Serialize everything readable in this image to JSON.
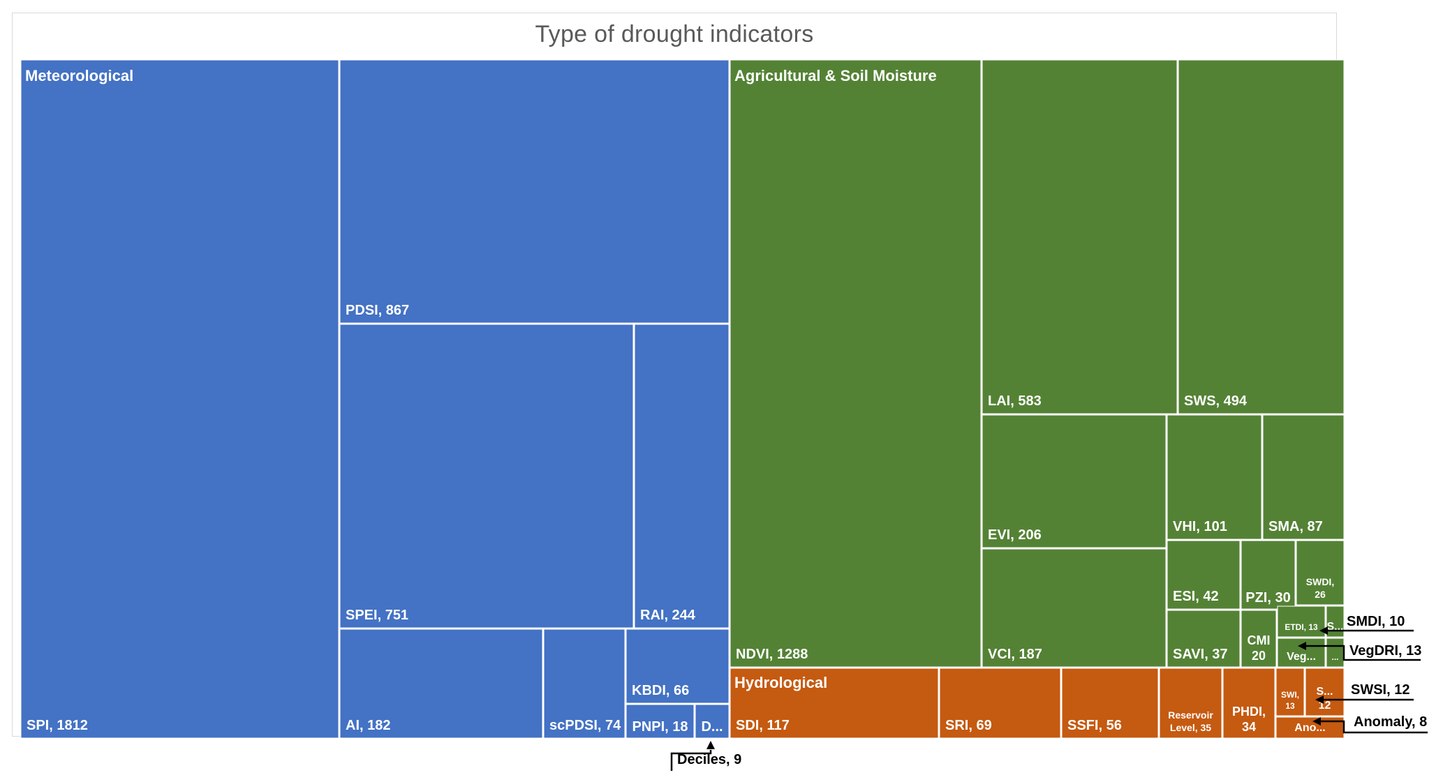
{
  "chart_data": {
    "type": "treemap",
    "title": "Type of drought indicators",
    "groups": [
      {
        "name": "Meteorological",
        "color": "#4472C4",
        "items": [
          {
            "label": "SPI",
            "value": 1812,
            "text": "SPI, 1812"
          },
          {
            "label": "PDSI",
            "value": 867,
            "text": "PDSI, 867"
          },
          {
            "label": "SPEI",
            "value": 751,
            "text": "SPEI, 751"
          },
          {
            "label": "RAI",
            "value": 244,
            "text": "RAI, 244"
          },
          {
            "label": "AI",
            "value": 182,
            "text": "AI, 182"
          },
          {
            "label": "scPDSI",
            "value": 74,
            "text": "scPDSI, 74"
          },
          {
            "label": "KBDI",
            "value": 66,
            "text": "KBDI, 66"
          },
          {
            "label": "PNPI",
            "value": 18,
            "text": "PNPI, 18"
          },
          {
            "label": "Deciles",
            "value": 9,
            "text": "D..."
          }
        ]
      },
      {
        "name": "Agricultural & Soil Moisture",
        "color": "#548235",
        "items": [
          {
            "label": "NDVI",
            "value": 1288,
            "text": "NDVI, 1288"
          },
          {
            "label": "LAI",
            "value": 583,
            "text": "LAI, 583"
          },
          {
            "label": "SWS",
            "value": 494,
            "text": "SWS, 494"
          },
          {
            "label": "EVI",
            "value": 206,
            "text": "EVI, 206"
          },
          {
            "label": "VCI",
            "value": 187,
            "text": "VCI, 187"
          },
          {
            "label": "VHI",
            "value": 101,
            "text": "VHI, 101"
          },
          {
            "label": "SMA",
            "value": 87,
            "text": "SMA, 87"
          },
          {
            "label": "ESI",
            "value": 42,
            "text": "ESI, 42"
          },
          {
            "label": "PZI",
            "value": 30,
            "text": "PZI, 30"
          },
          {
            "label": "SWDI",
            "value": 26,
            "text": "SWDI,\n26"
          },
          {
            "label": "SAVI",
            "value": 37,
            "text": "SAVI, 37"
          },
          {
            "label": "CMI",
            "value": 20,
            "text": "CMI\n20"
          },
          {
            "label": "ETDI",
            "value": 13,
            "text": "ETDI, 13"
          },
          {
            "label": "SMDI",
            "value": 10,
            "text": "S..."
          },
          {
            "label": "VegDRI",
            "value": 13,
            "text": "Veg..."
          },
          {
            "label": "",
            "value": null,
            "text": "..."
          }
        ]
      },
      {
        "name": "Hydrological",
        "color": "#C55A11",
        "items": [
          {
            "label": "SDI",
            "value": 117,
            "text": "SDI, 117"
          },
          {
            "label": "SRI",
            "value": 69,
            "text": "SRI, 69"
          },
          {
            "label": "SSFI",
            "value": 56,
            "text": "SSFI, 56"
          },
          {
            "label": "Reservoir Level",
            "value": 35,
            "text": "Reservoir\nLevel, 35"
          },
          {
            "label": "PHDI",
            "value": 34,
            "text": "PHDI,\n34"
          },
          {
            "label": "SWI",
            "value": 13,
            "text": "SWI,\n13"
          },
          {
            "label": "SWSI",
            "value": 12,
            "text": "S...\n12"
          },
          {
            "label": "Anomaly",
            "value": 8,
            "text": "Ano..."
          }
        ]
      }
    ],
    "callouts": [
      {
        "label": "SMDI",
        "text": "SMDI, 10"
      },
      {
        "label": "VegDRI",
        "text": "VegDRI, 13"
      },
      {
        "label": "SWSI",
        "text": "SWSI, 12"
      },
      {
        "label": "Anomaly",
        "text": "Anomaly, 8"
      },
      {
        "label": "Deciles",
        "text": "Deciles, 9"
      }
    ]
  }
}
